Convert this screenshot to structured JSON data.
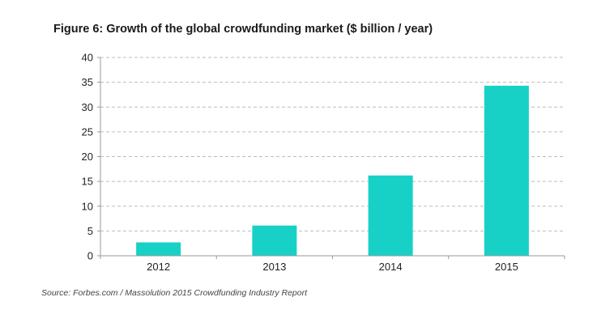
{
  "chart_data": {
    "type": "bar",
    "title": "Figure 6: Growth of the global crowdfunding market ($ billion / year)",
    "categories": [
      "2012",
      "2013",
      "2014",
      "2015"
    ],
    "values": [
      2.7,
      6.1,
      16.2,
      34.3
    ],
    "xlabel": "",
    "ylabel": "",
    "ylim": [
      0,
      40
    ],
    "yticks": [
      "0",
      "5",
      "10",
      "15",
      "20",
      "25",
      "30",
      "35",
      "40"
    ],
    "grid": true,
    "bar_color": "#17d1c6",
    "source": "Source: Forbes.com / Massolution 2015 Crowdfunding Industry Report"
  }
}
